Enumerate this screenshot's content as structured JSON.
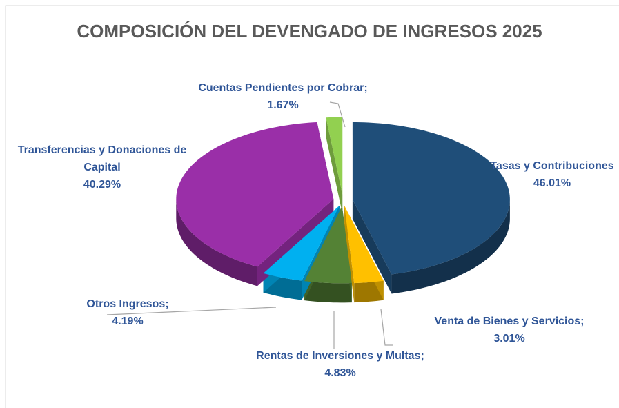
{
  "chart_data": {
    "type": "pie",
    "title": "COMPOSICIÓN DEL DEVENGADO DE INGRESOS 2025",
    "categories": [
      "Tasas y Contribuciones",
      "Venta de Bienes y Servicios;",
      "Rentas de Inversiones y Multas;",
      "Otros Ingresos;",
      "Transferencias y Donaciones de Capital",
      "Cuentas Pendientes por Cobrar;"
    ],
    "values": [
      46.01,
      3.01,
      4.83,
      4.19,
      40.29,
      1.67
    ],
    "value_labels": [
      "46.01%",
      "3.01%",
      "4.83%",
      "4.19%",
      "40.29%",
      "1.67%"
    ],
    "colors": [
      "#1f4e79",
      "#ffc000",
      "#548235",
      "#00b0f0",
      "#9a2fa8",
      "#92d050"
    ]
  }
}
